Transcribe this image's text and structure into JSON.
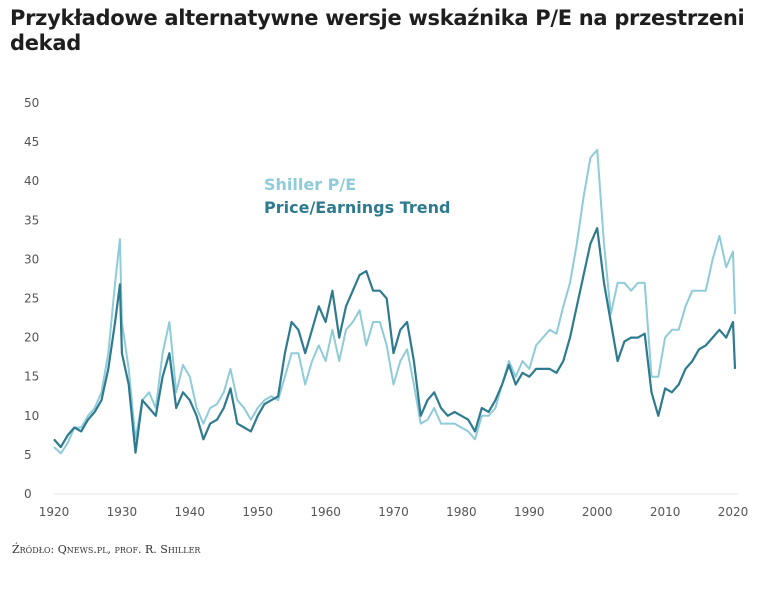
{
  "title": "Przykładowe alternatywne wersje wskaźnika P/E na przestrzeni dekad",
  "source": "Źródło: Qnews.pl, prof. R. Shiller",
  "chart_data": {
    "type": "line",
    "title": "Przykładowe alternatywne wersje wskaźnika P/E na przestrzeni dekad",
    "xlabel": "",
    "ylabel": "",
    "xlim": [
      1920,
      2020
    ],
    "ylim": [
      0,
      50
    ],
    "xticks": [
      1920,
      1930,
      1940,
      1950,
      1960,
      1970,
      1980,
      1990,
      2000,
      2010,
      2020
    ],
    "yticks": [
      0,
      5,
      10,
      15,
      20,
      25,
      30,
      35,
      40,
      45,
      50
    ],
    "grid": false,
    "legend_position": "top-left (inside)",
    "series": [
      {
        "name": "Shiller P/E",
        "color": "#8fcbd8",
        "x": [
          1920,
          1921,
          1922,
          1923,
          1924,
          1925,
          1926,
          1927,
          1928,
          1929,
          1929.7,
          1930,
          1931,
          1932,
          1933,
          1934,
          1935,
          1936,
          1937,
          1938,
          1939,
          1940,
          1941,
          1942,
          1943,
          1944,
          1945,
          1946,
          1947,
          1948,
          1949,
          1950,
          1951,
          1952,
          1953,
          1954,
          1955,
          1956,
          1957,
          1958,
          1959,
          1960,
          1961,
          1962,
          1963,
          1964,
          1965,
          1966,
          1967,
          1968,
          1969,
          1970,
          1971,
          1972,
          1973,
          1974,
          1975,
          1976,
          1977,
          1978,
          1979,
          1980,
          1981,
          1982,
          1983,
          1984,
          1985,
          1986,
          1987,
          1988,
          1989,
          1990,
          1991,
          1992,
          1993,
          1994,
          1995,
          1996,
          1997,
          1998,
          1999,
          2000,
          2001,
          2002,
          2003,
          2004,
          2005,
          2006,
          2007,
          2008,
          2009,
          2010,
          2011,
          2012,
          2013,
          2014,
          2015,
          2016,
          2017,
          2018,
          2019,
          2020,
          2020.3
        ],
        "y": [
          6,
          5.2,
          6.5,
          8.5,
          8.5,
          10,
          11,
          13,
          18,
          27,
          32.6,
          22,
          16,
          7,
          12,
          13,
          11,
          18,
          22,
          13,
          16.5,
          15,
          11,
          9,
          11,
          11.5,
          13,
          16,
          12,
          11,
          9.5,
          11,
          12,
          12.5,
          12,
          15,
          18,
          18,
          14,
          17,
          19,
          17,
          21,
          17,
          21,
          22,
          23.5,
          19,
          22,
          22,
          19,
          14,
          17,
          18.5,
          14,
          9,
          9.5,
          11,
          9,
          9,
          9,
          8.5,
          8,
          7,
          10,
          10,
          11,
          14,
          17,
          15,
          17,
          16,
          19,
          20,
          21,
          20.5,
          24,
          27,
          32,
          38,
          43,
          44,
          32,
          23,
          27,
          27,
          26,
          27,
          27,
          15,
          15,
          20,
          21,
          21,
          24,
          26,
          26,
          26,
          30,
          33,
          29,
          31,
          23
        ]
      },
      {
        "name": "Price/Earnings Trend",
        "color": "#2e7a8f",
        "x": [
          1920,
          1921,
          1922,
          1923,
          1924,
          1925,
          1926,
          1927,
          1928,
          1929,
          1929.7,
          1930,
          1931,
          1932,
          1933,
          1934,
          1935,
          1936,
          1937,
          1938,
          1939,
          1940,
          1941,
          1942,
          1943,
          1944,
          1945,
          1946,
          1947,
          1948,
          1949,
          1950,
          1951,
          1952,
          1953,
          1954,
          1955,
          1956,
          1957,
          1958,
          1959,
          1960,
          1961,
          1962,
          1963,
          1964,
          1965,
          1966,
          1967,
          1968,
          1969,
          1970,
          1971,
          1972,
          1973,
          1974,
          1975,
          1976,
          1977,
          1978,
          1979,
          1980,
          1981,
          1982,
          1983,
          1984,
          1985,
          1986,
          1987,
          1988,
          1989,
          1990,
          1991,
          1992,
          1993,
          1994,
          1995,
          1996,
          1997,
          1998,
          1999,
          2000,
          2001,
          2002,
          2003,
          2004,
          2005,
          2006,
          2007,
          2008,
          2009,
          2010,
          2011,
          2012,
          2013,
          2014,
          2015,
          2016,
          2017,
          2018,
          2019,
          2020,
          2020.3
        ],
        "y": [
          7,
          6,
          7.5,
          8.5,
          8,
          9.5,
          10.5,
          12,
          16,
          22,
          26.8,
          18,
          14,
          5.3,
          12,
          11,
          10,
          15,
          18,
          11,
          13,
          12,
          10,
          7,
          9,
          9.5,
          11,
          13.5,
          9,
          8.5,
          8,
          10,
          11.5,
          12,
          12.5,
          18,
          22,
          21,
          18,
          21,
          24,
          22,
          26,
          20,
          24,
          26,
          28,
          28.5,
          26,
          26,
          25,
          18,
          21,
          22,
          17,
          10,
          12,
          13,
          11,
          10,
          10.5,
          10,
          9.5,
          8,
          11,
          10.5,
          12,
          14,
          16.5,
          14,
          15.5,
          15,
          16,
          16,
          16,
          15.5,
          17,
          20,
          24,
          28,
          32,
          34,
          27,
          22,
          17,
          19.5,
          20,
          20,
          20.5,
          13,
          10,
          13.5,
          13,
          14,
          16,
          17,
          18.5,
          19,
          20,
          21,
          20,
          22,
          16
        ]
      }
    ]
  }
}
